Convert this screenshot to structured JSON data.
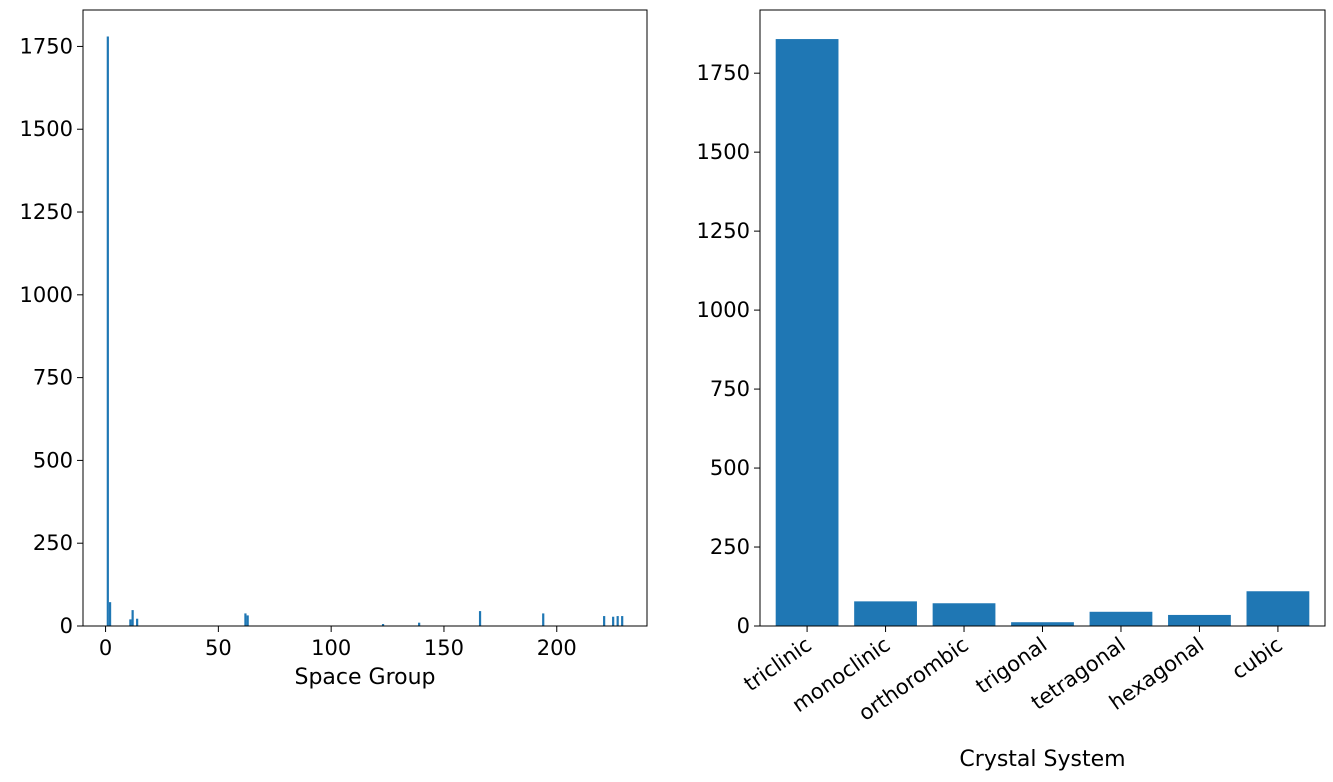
{
  "chart_data": [
    {
      "type": "bar",
      "xlabel": "Space Group",
      "ylabel": "",
      "xlim": [
        -10,
        240
      ],
      "ylim": [
        0,
        1860
      ],
      "xticks": [
        0,
        50,
        100,
        150,
        200
      ],
      "yticks": [
        0,
        250,
        500,
        750,
        1000,
        1250,
        1500,
        1750
      ],
      "color": "#1f77b4",
      "grid": false,
      "x": [
        1,
        2,
        11,
        12,
        14,
        62,
        63,
        123,
        139,
        166,
        194,
        221,
        225,
        227,
        229
      ],
      "values": [
        1780,
        72,
        20,
        48,
        22,
        38,
        32,
        6,
        10,
        45,
        38,
        30,
        28,
        30,
        30
      ]
    },
    {
      "type": "bar",
      "xlabel": "Crystal System",
      "ylabel": "",
      "ylim": [
        0,
        1950
      ],
      "yticks": [
        0,
        250,
        500,
        750,
        1000,
        1250,
        1500,
        1750
      ],
      "color": "#1f77b4",
      "grid": false,
      "categories": [
        "triclinic",
        "monoclinic",
        "orthorombic",
        "trigonal",
        "tetragonal",
        "hexagonal",
        "cubic"
      ],
      "values": [
        1858,
        78,
        72,
        12,
        45,
        35,
        110
      ]
    }
  ]
}
